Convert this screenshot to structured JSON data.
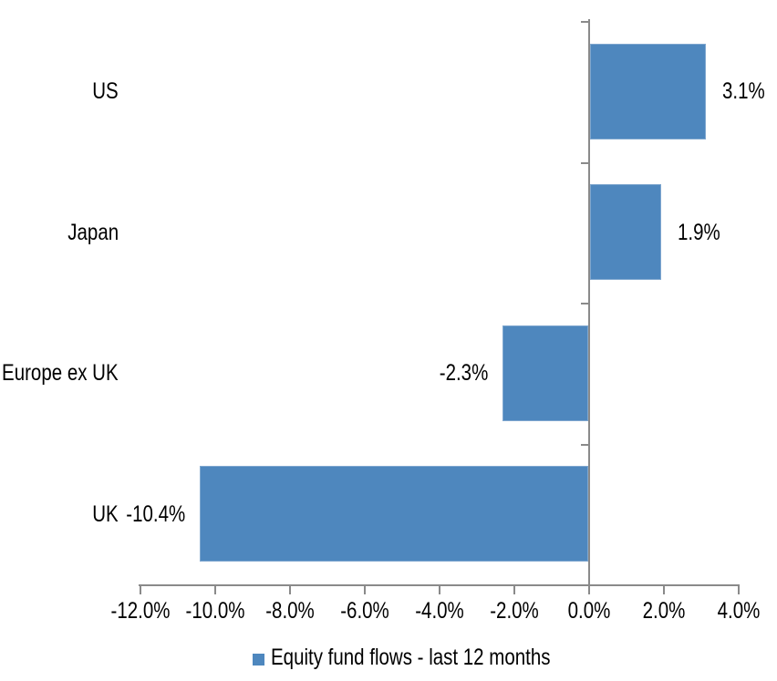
{
  "chart_data": {
    "type": "bar",
    "orientation": "horizontal",
    "title": "",
    "categories": [
      "US",
      "Japan",
      "Europe ex UK",
      "UK"
    ],
    "series": [
      {
        "name": "Equity fund flows - last 12 months",
        "values": [
          3.1,
          1.9,
          -2.3,
          -10.4
        ],
        "value_labels": [
          "3.1%",
          "1.9%",
          "-2.3%",
          "-10.4%"
        ]
      }
    ],
    "x_axis": {
      "min": -12,
      "max": 4,
      "tick_values": [
        -12,
        -10,
        -8,
        -6,
        -4,
        -2,
        0,
        2,
        4
      ],
      "tick_labels": [
        "-12.0%",
        "-10.0%",
        "-8.0%",
        "-6.0%",
        "-4.0%",
        "-2.0%",
        "0.0%",
        "2.0%",
        "4.0%"
      ]
    },
    "legend": {
      "position": "bottom",
      "label": "Equity fund flows - last 12 months"
    },
    "grid": "off",
    "colors": {
      "bar_fill": "#4E87BE",
      "bar_border": "#7FA7CF",
      "axis": "#8A8A8A",
      "text": "#000000",
      "background": "#FFFFFF"
    }
  }
}
